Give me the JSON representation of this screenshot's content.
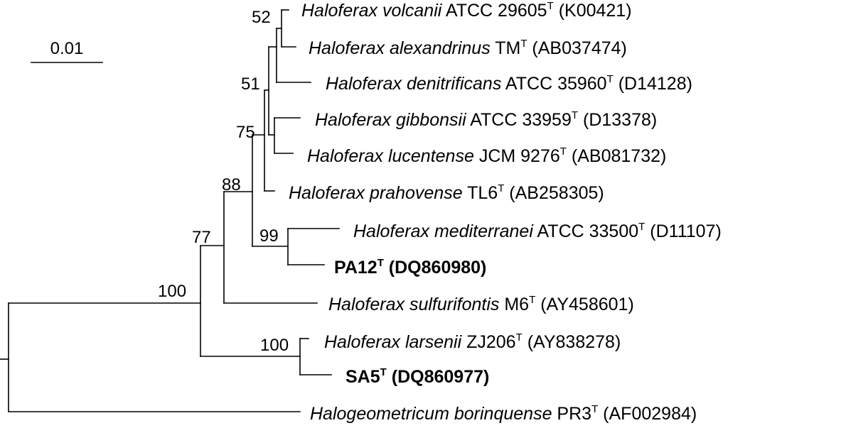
{
  "scale_bar": {
    "label": "0.01"
  },
  "leaves": [
    {
      "name": "Haloferax volcanii",
      "strain": "ATCC 29605",
      "superscript": "T",
      "accession": "(K00421)",
      "bold": false
    },
    {
      "name": "Haloferax alexandrinus",
      "strain": "TM",
      "superscript": "T",
      "accession": "(AB037474)",
      "bold": false
    },
    {
      "name": "Haloferax denitrificans",
      "strain": "ATCC 35960",
      "superscript": "T",
      "accession": "(D14128)",
      "bold": false
    },
    {
      "name": "Haloferax gibbonsii",
      "strain": "ATCC 33959",
      "superscript": "T",
      "accession": "(D13378)",
      "bold": false
    },
    {
      "name": "Haloferax lucentense",
      "strain": "JCM 9276",
      "superscript": "T",
      "accession": "(AB081732)",
      "bold": false
    },
    {
      "name": "Haloferax prahovense",
      "strain": "TL6",
      "superscript": "T",
      "accession": "(AB258305)",
      "bold": false
    },
    {
      "name": "Haloferax mediterranei",
      "strain": "ATCC 33500",
      "superscript": "T",
      "accession": "(D11107)",
      "bold": false
    },
    {
      "name": "",
      "strain": "PA12",
      "superscript": "T",
      "accession": "(DQ860980)",
      "bold": true
    },
    {
      "name": "Haloferax sulfurifontis",
      "strain": "M6",
      "superscript": "T",
      "accession": "(AY458601)",
      "bold": false
    },
    {
      "name": "Haloferax larsenii",
      "strain": "ZJ206",
      "superscript": "T",
      "accession": "(AY838278)",
      "bold": false
    },
    {
      "name": "",
      "strain": "SA5",
      "superscript": "T",
      "accession": "(DQ860977)",
      "bold": true
    },
    {
      "name": "Halogeometricum borinquense",
      "strain": "PR3",
      "superscript": "T",
      "accession": "(AF002984)",
      "bold": false
    }
  ],
  "bootstrap": [
    "52",
    "51",
    "75",
    "88",
    "99",
    "77",
    "100",
    "100"
  ]
}
